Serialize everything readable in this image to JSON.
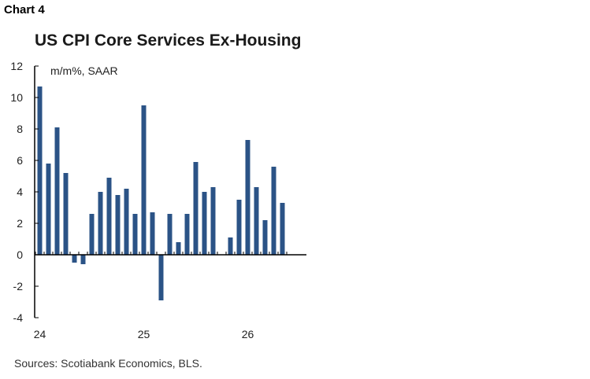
{
  "header": {
    "chart_number": "Chart 4",
    "title": "US CPI Core Services Ex-Housing"
  },
  "footer": {
    "source": "Sources: Scotiabank Economics, BLS."
  },
  "chart_data": {
    "type": "bar",
    "title": "US CPI Core Services Ex-Housing",
    "unit_label": "m/m%, SAAR",
    "xlabel": "",
    "ylabel": "",
    "ylim": [
      -4,
      12
    ],
    "yticks": [
      -4,
      -2,
      0,
      2,
      4,
      6,
      8,
      10,
      12
    ],
    "x_tick_labels": [
      {
        "label": "24",
        "month_index": 0
      },
      {
        "label": "25",
        "month_index": 12
      },
      {
        "label": "26",
        "month_index": 24
      }
    ],
    "grid": false,
    "legend": "none",
    "bar_color": "#2b5386",
    "axis_color": "#000000",
    "series": [
      {
        "values": [
          10.7,
          5.8,
          8.1,
          5.2,
          -0.5,
          -0.6,
          2.6,
          4.0,
          4.9,
          3.8,
          4.2,
          2.6,
          9.5,
          2.7,
          -2.9,
          2.6,
          0.8,
          2.6,
          5.9,
          4.0,
          4.3,
          null,
          1.1,
          3.5,
          7.3,
          4.3,
          2.2,
          5.6,
          3.3
        ]
      }
    ]
  }
}
